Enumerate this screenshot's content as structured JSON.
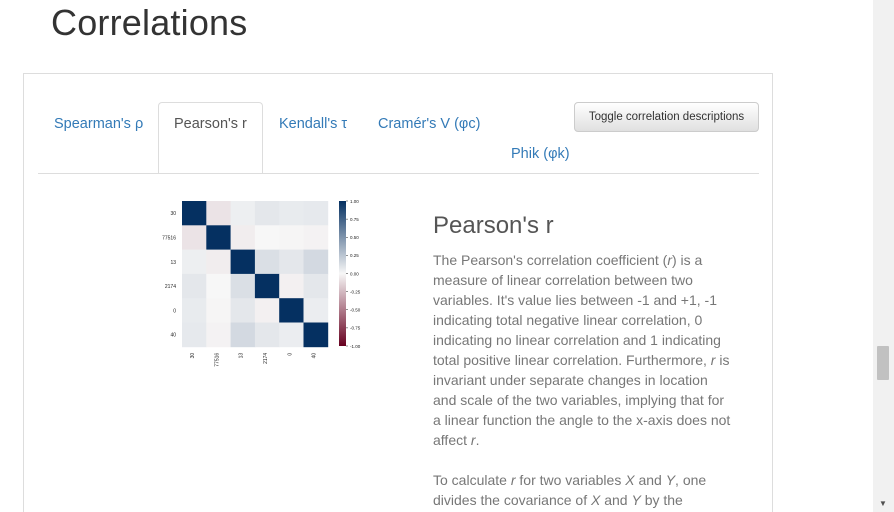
{
  "page": {
    "title": "Correlations"
  },
  "tabs": [
    {
      "label": "Spearman's ρ",
      "active": false
    },
    {
      "label": "Pearson's r",
      "active": true
    },
    {
      "label": "Kendall's τ",
      "active": false
    },
    {
      "label": "Cramér's V (φc)",
      "active": false
    },
    {
      "label": "Phik (φk)",
      "active": false
    }
  ],
  "toggle_button": {
    "label": "Toggle correlation descriptions"
  },
  "heatmap": {
    "labels": [
      "30",
      "77516",
      "13",
      "2174",
      "0",
      "40"
    ],
    "colorbar_ticks": [
      "1.00",
      "0.75",
      "0.50",
      "0.25",
      "0.00",
      "-0.25",
      "-0.50",
      "-0.75",
      "-1.00"
    ],
    "matrix": [
      [
        1.0,
        -0.08,
        0.04,
        0.08,
        0.06,
        0.07
      ],
      [
        -0.08,
        1.0,
        -0.04,
        0.0,
        -0.01,
        -0.02
      ],
      [
        0.04,
        -0.04,
        1.0,
        0.12,
        0.08,
        0.15
      ],
      [
        0.08,
        0.0,
        0.12,
        1.0,
        -0.03,
        0.08
      ],
      [
        0.06,
        -0.01,
        0.08,
        -0.03,
        1.0,
        0.05
      ],
      [
        0.07,
        -0.02,
        0.15,
        0.08,
        0.05,
        1.0
      ]
    ]
  },
  "description": {
    "title": "Pearson's r",
    "paragraph1_segments": [
      "The Pearson's correlation coefficient (",
      "r",
      ") is a measure of linear correlation between two variables. It's value lies between -1 and +1, -1 indicating total negative linear correlation, 0 indicating no linear correlation and 1 indicating total positive linear correlation. Furthermore, ",
      "r",
      " is invariant under separate changes in location and scale of the two variables, implying that for a linear function the angle to the x-axis does not affect ",
      "r",
      "."
    ],
    "paragraph2_segments": [
      "To calculate ",
      "r",
      " for two variables ",
      "X",
      " and ",
      "Y",
      ", one divides the covariance of ",
      "X",
      " and ",
      "Y",
      " by the"
    ]
  },
  "scrollbar": {
    "down_arrow": "▼"
  }
}
